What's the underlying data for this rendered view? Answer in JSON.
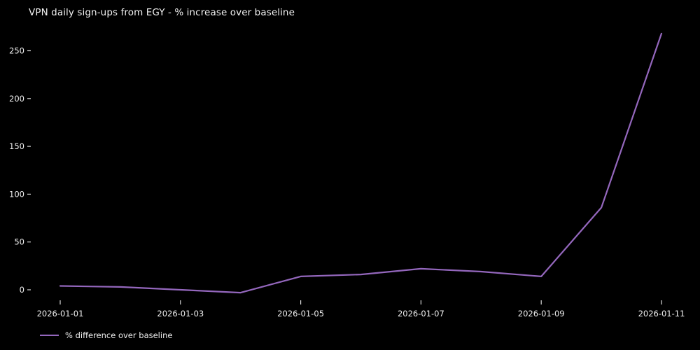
{
  "chart": {
    "title": "VPN daily sign-ups from EGY - % increase over baseline",
    "legend": {
      "label": "% difference over baseline"
    },
    "colors": {
      "background": "#000000",
      "line": "#9467bd",
      "text": "#f0f0f0",
      "tick": "#d8d8d8"
    }
  },
  "chart_data": {
    "type": "line",
    "title": "VPN daily sign-ups from EGY - % increase over baseline",
    "xlabel": "",
    "ylabel": "",
    "x": [
      "2026-01-01",
      "2026-01-02",
      "2026-01-03",
      "2026-01-04",
      "2026-01-05",
      "2026-01-06",
      "2026-01-07",
      "2026-01-08",
      "2026-01-09",
      "2026-01-10",
      "2026-01-11"
    ],
    "series": [
      {
        "name": "% difference over baseline",
        "values": [
          4,
          3,
          0,
          -3,
          14,
          16,
          22,
          19,
          14,
          86,
          268
        ],
        "color": "#9467bd"
      }
    ],
    "x_tick_labels": [
      "2026-01-01",
      "2026-01-03",
      "2026-01-05",
      "2026-01-07",
      "2026-01-09",
      "2026-01-11"
    ],
    "x_tick_indices": [
      0,
      2,
      4,
      6,
      8,
      10
    ],
    "y_ticks": [
      0,
      50,
      100,
      150,
      200,
      250
    ],
    "ylim": [
      -16,
      282
    ],
    "grid": false,
    "legend_position": "lower left, below axes",
    "background": "#000000"
  }
}
